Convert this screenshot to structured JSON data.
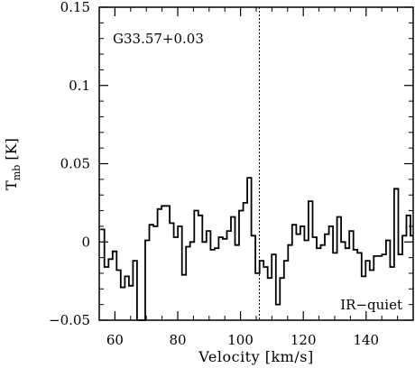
{
  "chart_data": {
    "type": "line",
    "style": "step",
    "xlabel": "Velocity [km/s]",
    "ylabel_main": "T",
    "ylabel_sub": "mb",
    "ylabel_unit": " [K]",
    "xlim": [
      55,
      155
    ],
    "ylim": [
      -0.05,
      0.15
    ],
    "xticks": [
      60,
      80,
      100,
      120,
      140
    ],
    "xtick_labels": [
      "60",
      "80",
      "100",
      "120",
      "140"
    ],
    "yticks": [
      -0.05,
      0,
      0.05,
      0.1,
      0.15
    ],
    "ytick_labels": [
      "−0.05",
      "0",
      "0.05",
      "0.1",
      "0.15"
    ],
    "vline_x": 106,
    "source_label": "G33.57+0.03",
    "class_label": "IR−quiet",
    "series": [
      {
        "x": [
          56,
          57.3,
          58.6,
          59.9,
          61.2,
          62.5,
          63.8,
          65.1,
          66.4,
          67.7,
          69,
          70.3,
          71.6,
          72.9,
          74.2,
          75.5,
          76.8,
          78.1,
          79.4,
          80.7,
          82,
          83.3,
          84.6,
          85.9,
          87.2,
          88.5,
          89.8,
          91.1,
          92.4,
          93.7,
          95,
          96.3,
          97.6,
          98.9,
          100.2,
          101.5,
          102.8,
          104.1,
          105.4,
          106.7,
          108,
          109.3,
          110.6,
          111.9,
          113.2,
          114.5,
          115.8,
          117.1,
          118.4,
          119.7,
          121,
          122.3,
          123.6,
          124.9,
          126.2,
          127.5,
          128.8,
          130.1,
          131.4,
          132.7,
          134,
          135.3,
          136.6,
          137.9,
          139.2,
          140.5,
          141.8,
          143.1,
          144.4,
          145.7,
          147,
          148.3,
          149.6,
          150.9,
          152.2,
          153.5,
          154.8
        ],
        "values": [
          0.008,
          -0.016,
          -0.011,
          -0.006,
          -0.018,
          -0.029,
          -0.022,
          -0.028,
          -0.012,
          -0.054,
          -0.06,
          0.001,
          0.011,
          0.01,
          0.021,
          0.023,
          0.023,
          0.012,
          0.003,
          0.01,
          -0.021,
          -0.003,
          0.0,
          0.02,
          0.017,
          0.0,
          0.007,
          -0.005,
          -0.004,
          0.003,
          0.002,
          0.007,
          0.016,
          -0.002,
          0.02,
          0.025,
          0.041,
          0.004,
          -0.02,
          -0.012,
          -0.016,
          -0.023,
          -0.008,
          -0.04,
          -0.023,
          -0.012,
          -0.002,
          0.011,
          0.005,
          0.01,
          0.001,
          0.026,
          0.003,
          -0.004,
          -0.002,
          0.005,
          0.01,
          -0.007,
          0.016,
          0.0,
          -0.004,
          0.007,
          -0.005,
          -0.007,
          -0.022,
          -0.012,
          -0.018,
          -0.009,
          -0.009,
          -0.008,
          0.001,
          -0.016,
          0.034,
          -0.008,
          0.004,
          0.017,
          0.004
        ]
      }
    ]
  }
}
